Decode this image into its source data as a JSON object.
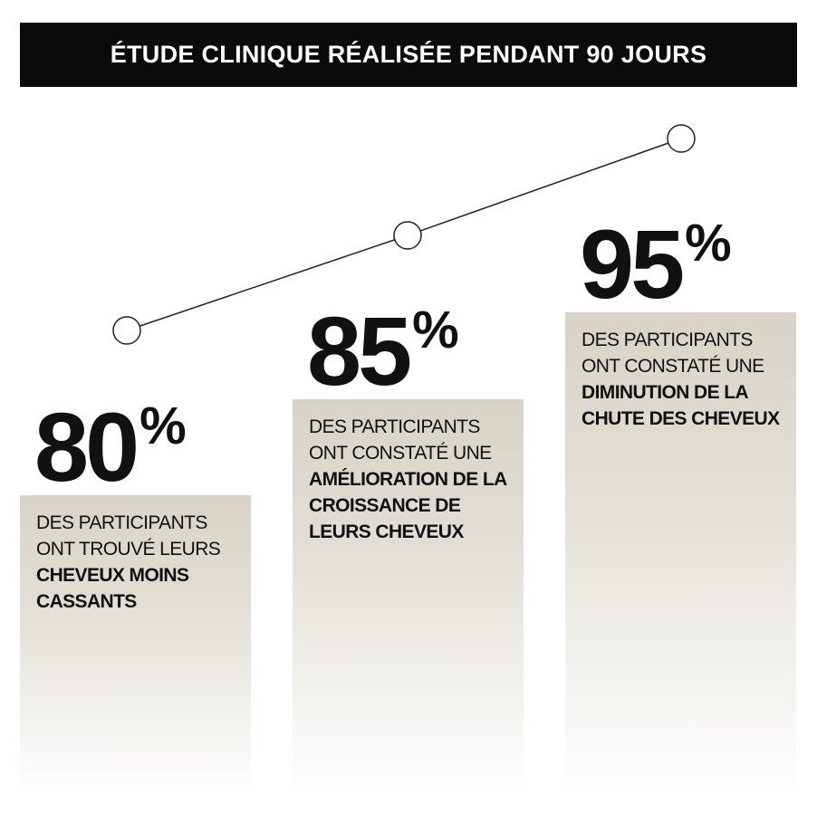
{
  "header": {
    "title": "ÉTUDE CLINIQUE RÉALISÉE PENDANT 90 JOURS"
  },
  "stats": [
    {
      "value": "80",
      "unit": "%",
      "text": "DES PARTICIPANTS ONT TROUVÉ LEURS",
      "highlight": "CHEVEUX MOINS CASSANTS"
    },
    {
      "value": "85",
      "unit": "%",
      "text": "DES PARTICIPANTS ONT CONSTATÉ UNE",
      "highlight": "AMÉLIORATION DE LA CROISSANCE DE LEURS CHEVEUX"
    },
    {
      "value": "95",
      "unit": "%",
      "text": "DES PARTICIPANTS ONT CONSTATÉ UNE",
      "highlight": "DIMINUTION DE LA CHUTE DES CHEVEUX"
    }
  ]
}
